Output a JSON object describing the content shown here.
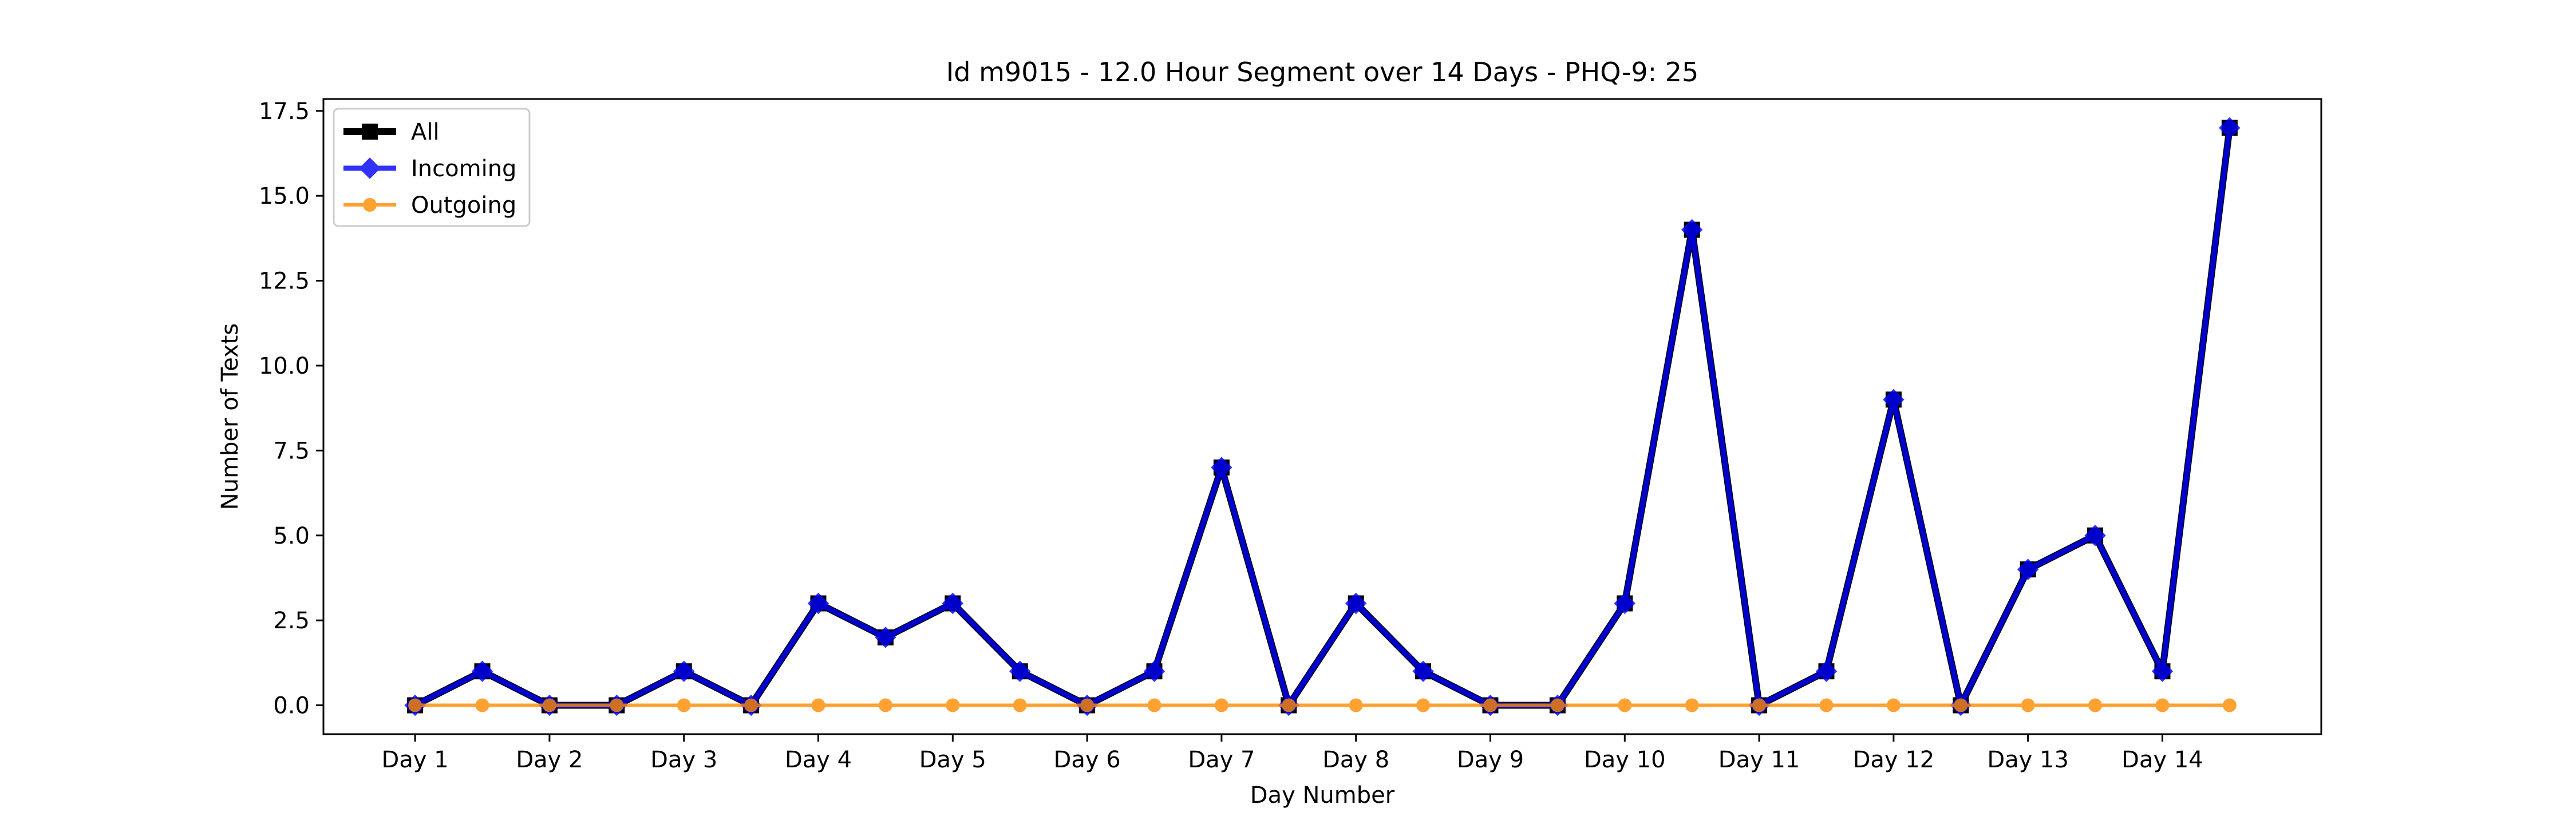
{
  "chart_data": {
    "type": "line",
    "title": "Id m9015 - 12.0 Hour Segment over 14 Days - PHQ-9: 25",
    "xlabel": "Day Number",
    "ylabel": "Number of Texts",
    "x_tick_labels": [
      "Day 1",
      "Day 2",
      "Day 3",
      "Day 4",
      "Day 5",
      "Day 6",
      "Day 7",
      "Day 8",
      "Day 9",
      "Day 10",
      "Day 11",
      "Day 12",
      "Day 13",
      "Day 14"
    ],
    "y_tick_labels": [
      "0.0",
      "2.5",
      "5.0",
      "7.5",
      "10.0",
      "12.5",
      "15.0",
      "17.5"
    ],
    "ylim": [
      -0.85,
      17.85
    ],
    "grid": false,
    "legend_position": "top-left",
    "x": [
      1,
      1.5,
      2,
      2.5,
      3,
      3.5,
      4,
      4.5,
      5,
      5.5,
      6,
      6.5,
      7,
      7.5,
      8,
      8.5,
      9,
      9.5,
      10,
      10.5,
      11,
      11.5,
      12,
      12.5,
      13,
      13.5,
      14,
      14.5
    ],
    "series": [
      {
        "name": "All",
        "color": "#000000",
        "marker": "square",
        "values": [
          0,
          1,
          0,
          0,
          1,
          0,
          3,
          2,
          3,
          1,
          0,
          1,
          7,
          0,
          3,
          1,
          0,
          0,
          3,
          14,
          0,
          1,
          9,
          0,
          4,
          5,
          1,
          17
        ]
      },
      {
        "name": "Incoming",
        "color": "#0000ff",
        "marker": "diamond",
        "values": [
          0,
          1,
          0,
          0,
          1,
          0,
          3,
          2,
          3,
          1,
          0,
          1,
          7,
          0,
          3,
          1,
          0,
          0,
          3,
          14,
          0,
          1,
          9,
          0,
          4,
          5,
          1,
          17
        ]
      },
      {
        "name": "Outgoing",
        "color": "#ff8c00",
        "marker": "circle",
        "values": [
          0,
          0,
          0,
          0,
          0,
          0,
          0,
          0,
          0,
          0,
          0,
          0,
          0,
          0,
          0,
          0,
          0,
          0,
          0,
          0,
          0,
          0,
          0,
          0,
          0,
          0,
          0,
          0
        ]
      }
    ]
  }
}
